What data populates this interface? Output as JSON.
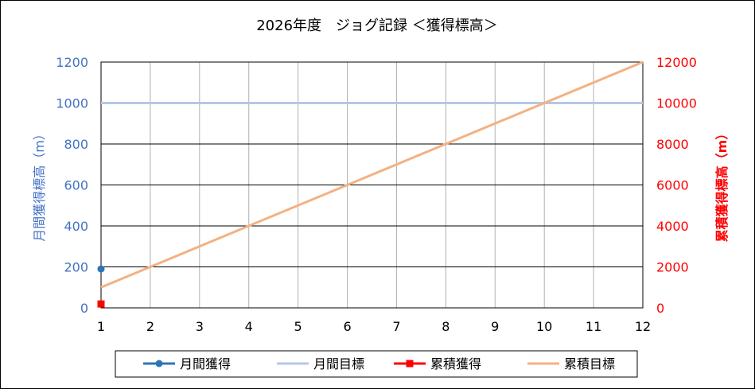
{
  "chart_data": {
    "type": "line",
    "title": "2026年度　ジョグ記録 ＜獲得標高＞",
    "x": [
      1,
      2,
      3,
      4,
      5,
      6,
      7,
      8,
      9,
      10,
      11,
      12
    ],
    "xlim": [
      1,
      12
    ],
    "y_left": {
      "label": "月間獲得標高（m）",
      "ylim": [
        0,
        1200
      ],
      "ticks": [
        0,
        200,
        400,
        600,
        800,
        1000,
        1200
      ],
      "color": "#4472c4"
    },
    "y_right": {
      "label": "累積獲得標高（m）",
      "ylim": [
        0,
        12000
      ],
      "ticks": [
        0,
        2000,
        4000,
        6000,
        8000,
        10000,
        12000
      ],
      "color": "#ff0000"
    },
    "grid": true,
    "legend_position": "bottom",
    "series": [
      {
        "name": "月間獲得",
        "axis": "left",
        "color": "#2e75b6",
        "marker": "circle",
        "x": [
          1
        ],
        "values": [
          190
        ]
      },
      {
        "name": "月間目標",
        "axis": "left",
        "color": "#b4c7e7",
        "marker": "none",
        "x": [
          1,
          12
        ],
        "values": [
          1000,
          1000
        ]
      },
      {
        "name": "累積獲得",
        "axis": "right",
        "color": "#ff0000",
        "marker": "square",
        "x": [
          1
        ],
        "values": [
          190
        ]
      },
      {
        "name": "累積目標",
        "axis": "right",
        "color": "#f4b183",
        "marker": "none",
        "x": [
          1,
          12
        ],
        "values": [
          1000,
          12000
        ]
      }
    ]
  }
}
